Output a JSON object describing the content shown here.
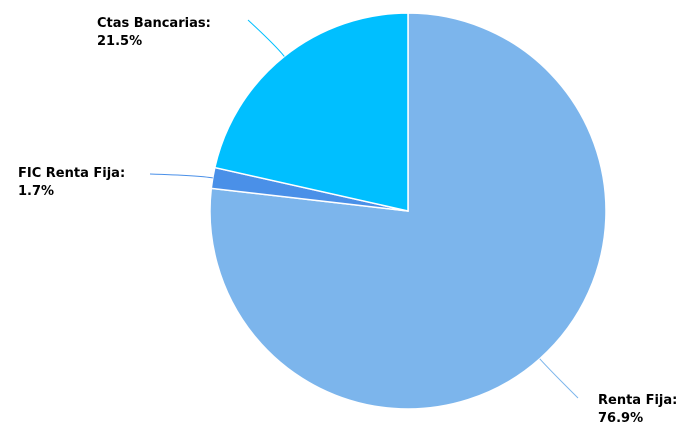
{
  "chart_data": {
    "type": "pie",
    "title": "",
    "start_angle_deg": 0,
    "direction": "clockwise",
    "legend": "none",
    "slices": [
      {
        "name": "Renta Fija",
        "label": "Renta Fija:",
        "value_label": "76.9%",
        "value": 76.9,
        "color": "#7cb5ec"
      },
      {
        "name": "FIC Renta Fija",
        "label": "FIC Renta Fija:",
        "value_label": "1.7%",
        "value": 1.7,
        "color": "#4a90e8"
      },
      {
        "name": "Ctas Bancarias",
        "label": "Ctas Bancarias:",
        "value_label": "21.5%",
        "value": 21.5,
        "color": "#00bfff"
      }
    ]
  }
}
